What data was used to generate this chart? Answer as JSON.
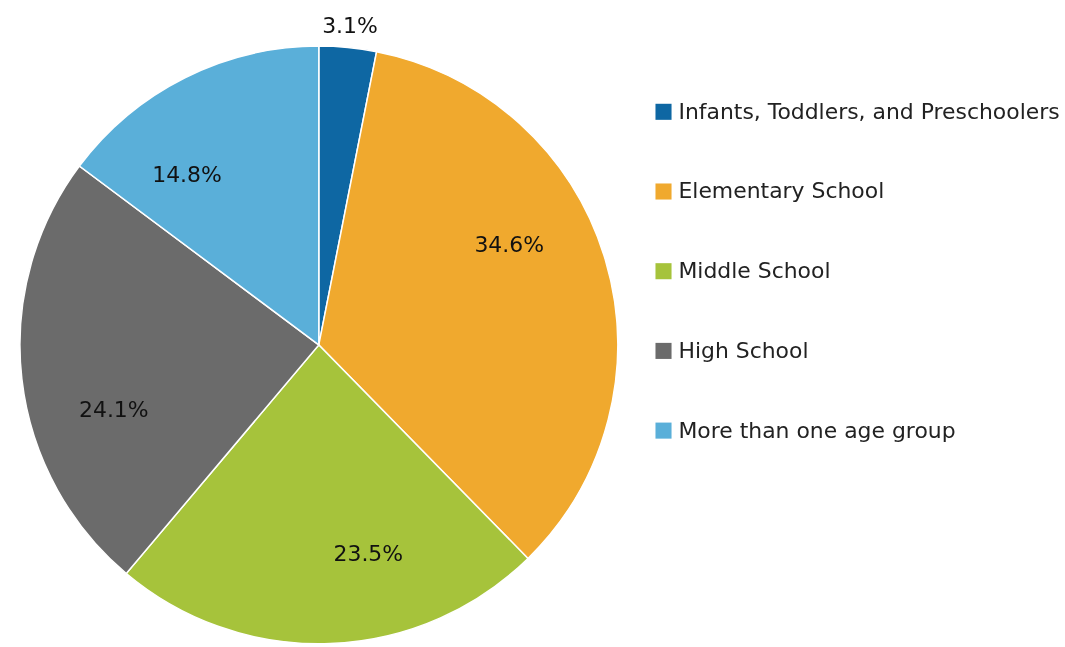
{
  "chart_data": {
    "type": "pie",
    "categories": [
      "Infants, Toddlers, and Preschoolers",
      "Elementary School",
      "Middle School",
      "High School",
      "More than one age group"
    ],
    "values": [
      3.1,
      34.6,
      23.5,
      24.1,
      14.8
    ],
    "colors": [
      "#0e67a3",
      "#f0a92e",
      "#a6c33b",
      "#6b6b6b",
      "#5aafd9"
    ],
    "value_labels": [
      "3.1%",
      "34.6%",
      "23.5%",
      "24.1%",
      "14.8%"
    ],
    "legend": "right"
  }
}
